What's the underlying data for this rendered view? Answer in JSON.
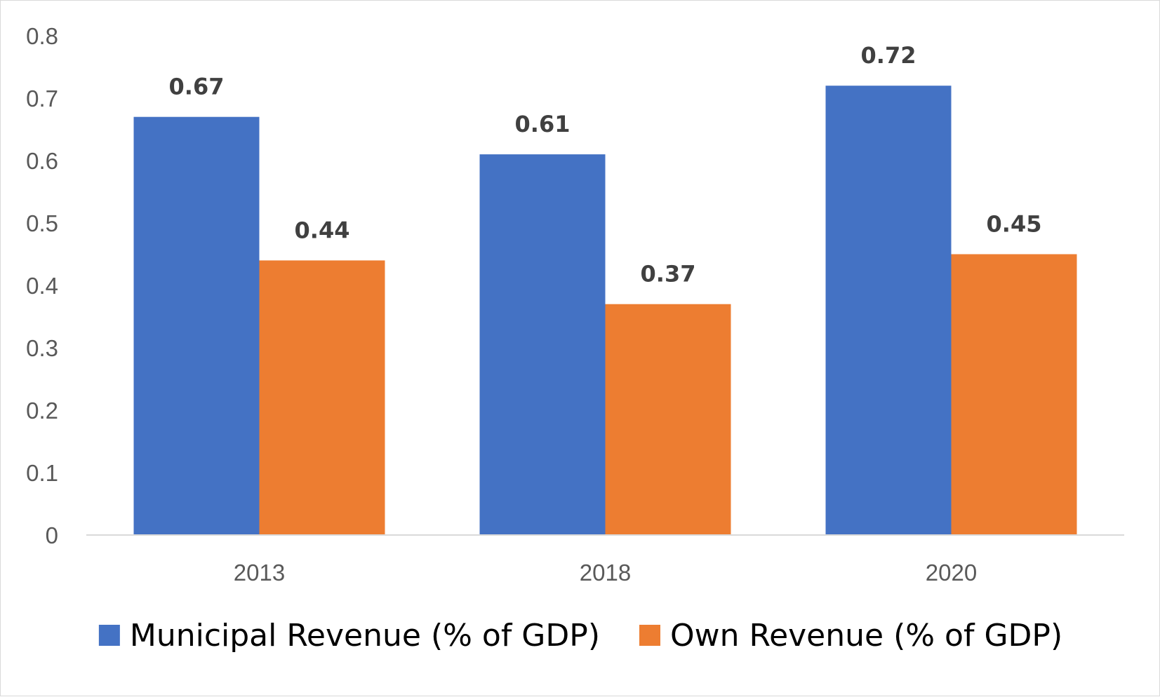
{
  "chart_data": {
    "type": "bar",
    "title": "",
    "xlabel": "",
    "ylabel": "",
    "categories": [
      "2013",
      "2018",
      "2020"
    ],
    "series": [
      {
        "name": "Municipal Revenue (% of GDP)",
        "values": [
          0.67,
          0.61,
          0.72
        ],
        "labels": [
          "0.67",
          "0.61",
          "0.72"
        ],
        "color": "#4472C4"
      },
      {
        "name": "Own Revenue (% of GDP)",
        "values": [
          0.44,
          0.37,
          0.45
        ],
        "labels": [
          "0.44",
          "0.37",
          "0.45"
        ],
        "color": "#ED7D31"
      }
    ],
    "ylim": [
      0,
      0.8
    ],
    "yticks": [
      "0",
      "0.1",
      "0.2",
      "0.3",
      "0.4",
      "0.5",
      "0.6",
      "0.7",
      "0.8"
    ],
    "grid": false,
    "legend": "bottom"
  }
}
